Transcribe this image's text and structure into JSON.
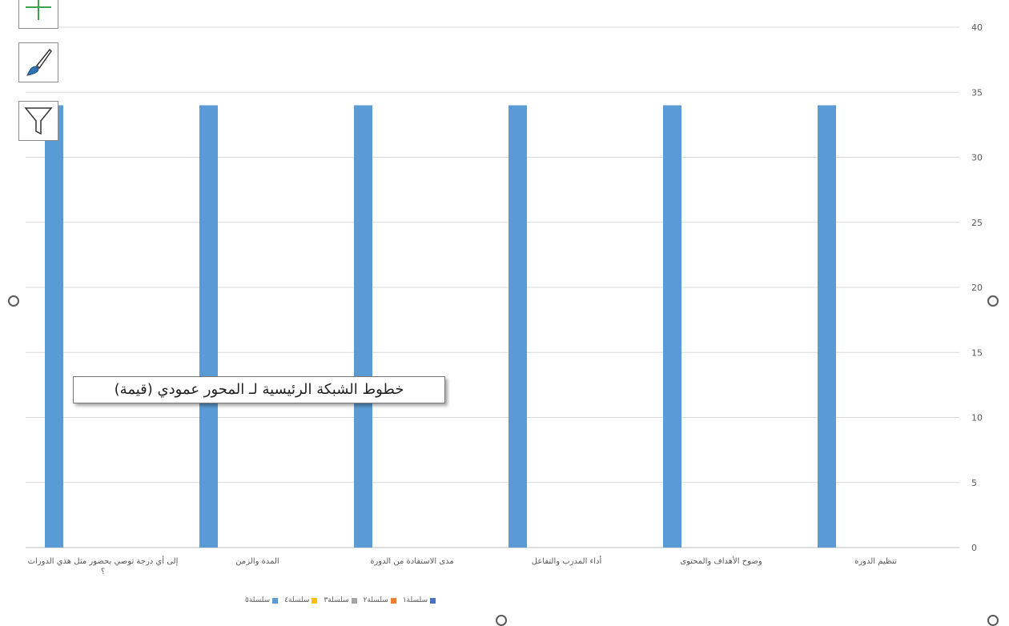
{
  "chart_data": {
    "type": "bar",
    "title": "",
    "xlabel": "",
    "ylabel": "",
    "categories": [
      "تنظيم الدورة",
      "وضوح الأهداف والمحتوى",
      "أداء المدرب والتفاعل",
      "مدى الاستفادة من الدورة",
      "المدة والزمن",
      "إلى أي درجة توصي بحضور مثل هذي الدورات ؟"
    ],
    "series": [
      {
        "name": "سلسلة٥",
        "color": "#5b9bd5",
        "values": [
          34,
          34,
          34,
          34,
          34,
          34
        ]
      }
    ],
    "legend": [
      {
        "name": "سلسلة١",
        "color": "#4472c4"
      },
      {
        "name": "سلسلة٢",
        "color": "#ed7d31"
      },
      {
        "name": "سلسلة٣",
        "color": "#a5a5a5"
      },
      {
        "name": "سلسلة٤",
        "color": "#ffc000"
      },
      {
        "name": "سلسلة٥",
        "color": "#5b9bd5"
      }
    ],
    "ylim": [
      0,
      40
    ],
    "yticks": [
      0,
      5,
      10,
      15,
      20,
      25,
      30,
      35,
      40
    ],
    "yaxis_position": "right",
    "categories_order": "right-to-left",
    "grid": true,
    "legend_position": "bottom"
  },
  "tooltip": {
    "text": "خطوط الشبكة الرئيسية لـ المحور عمودي (قيمة)"
  },
  "toolbar": {
    "items": [
      {
        "name": "chart-elements",
        "icon": "plus-icon"
      },
      {
        "name": "chart-styles",
        "icon": "paintbrush-icon"
      },
      {
        "name": "chart-filters",
        "icon": "funnel-icon"
      }
    ]
  }
}
